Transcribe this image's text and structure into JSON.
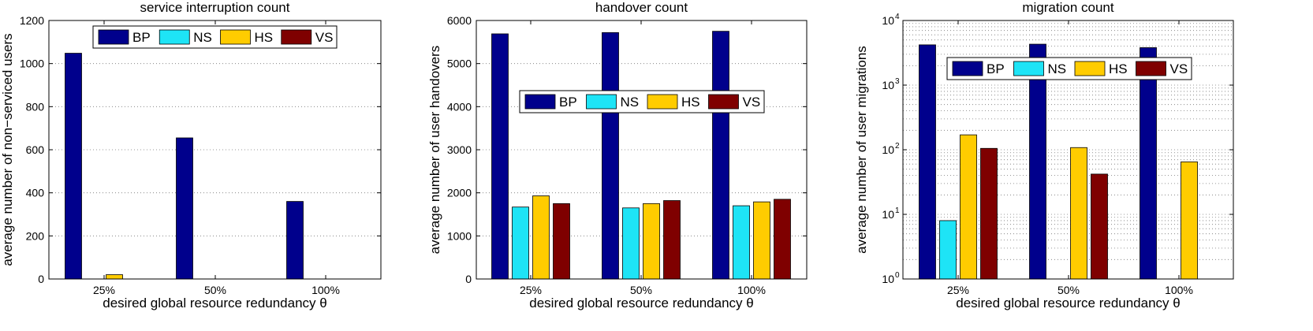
{
  "chart_data": [
    {
      "type": "bar",
      "title": "service interruption count",
      "xlabel": "desired global resource redundancy θ",
      "ylabel": "average number of non−serviced users",
      "categories": [
        "25%",
        "50%",
        "100%"
      ],
      "ylim": [
        0,
        1200
      ],
      "yticks": [
        "0",
        "200",
        "400",
        "600",
        "800",
        "1000",
        "1200"
      ],
      "yscale": "linear",
      "grid": "horizontal-dotted",
      "legend_position": "top",
      "series": [
        {
          "name": "BP",
          "values": [
            1048,
            655,
            360
          ]
        },
        {
          "name": "NS",
          "values": [
            0,
            0,
            0
          ]
        },
        {
          "name": "HS",
          "values": [
            20,
            0,
            0
          ]
        },
        {
          "name": "VS",
          "values": [
            0,
            0,
            0
          ]
        }
      ]
    },
    {
      "type": "bar",
      "title": "handover count",
      "xlabel": "desired global resource redundancy θ",
      "ylabel": "average number of user handovers",
      "categories": [
        "25%",
        "50%",
        "100%"
      ],
      "ylim": [
        0,
        6000
      ],
      "yticks": [
        "0",
        "1000",
        "2000",
        "3000",
        "4000",
        "5000",
        "6000"
      ],
      "yscale": "linear",
      "grid": "horizontal-dotted",
      "legend_position": "middle",
      "series": [
        {
          "name": "BP",
          "values": [
            5690,
            5720,
            5750
          ]
        },
        {
          "name": "NS",
          "values": [
            1670,
            1650,
            1700
          ]
        },
        {
          "name": "HS",
          "values": [
            1930,
            1750,
            1790
          ]
        },
        {
          "name": "VS",
          "values": [
            1750,
            1820,
            1850
          ]
        }
      ]
    },
    {
      "type": "bar",
      "title": "migration count",
      "xlabel": "desired global resource redundancy θ",
      "ylabel": "average number of user migrations",
      "categories": [
        "25%",
        "50%",
        "100%"
      ],
      "yscale": "log",
      "ylim": [
        1,
        10000
      ],
      "yticks": [
        {
          "base": "10",
          "exp": "0"
        },
        {
          "base": "10",
          "exp": "1"
        },
        {
          "base": "10",
          "exp": "2"
        },
        {
          "base": "10",
          "exp": "3"
        },
        {
          "base": "10",
          "exp": "4"
        }
      ],
      "grid": "log-dotted",
      "legend_position": "top",
      "series": [
        {
          "name": "BP",
          "values": [
            4200,
            4300,
            3800
          ]
        },
        {
          "name": "NS",
          "values": [
            8,
            0,
            0
          ]
        },
        {
          "name": "HS",
          "values": [
            170,
            108,
            65
          ]
        },
        {
          "name": "VS",
          "values": [
            105,
            42,
            0
          ]
        }
      ]
    }
  ],
  "colors": {
    "BP": "#00008c",
    "NS": "#1ee4f6",
    "HS": "#ffcc00",
    "VS": "#7f0000"
  }
}
